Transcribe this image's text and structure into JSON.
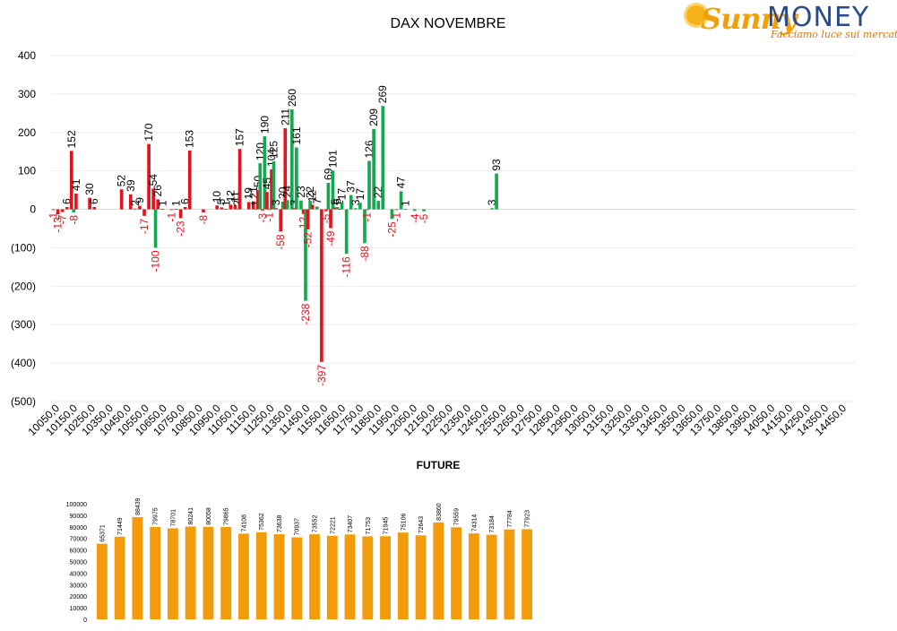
{
  "logo": {
    "sunny": "Sunny",
    "money": "MONEY",
    "tagline": "Facciamo luce sui mercati"
  },
  "colors": {
    "negative": "#e3121d",
    "positive": "#16a84f",
    "future": "#f39c0b",
    "neg_label": "#e3121d",
    "text": "#000000"
  },
  "chart_data": [
    {
      "type": "bar",
      "title": "DAX NOVEMBRE",
      "xlabel": "",
      "ylabel": "",
      "ylim": [
        -500,
        400
      ],
      "yticks": [
        "400",
        "300",
        "200",
        "100",
        "0",
        "(100)",
        "(200)",
        "(300)",
        "(400)",
        "(500)"
      ],
      "categories": [
        "10050,0",
        "10150,0",
        "10250,0",
        "10350,0",
        "10450,0",
        "10550,0",
        "10650,0",
        "10750,0",
        "10850,0",
        "10950,0",
        "11050,0",
        "11150,0",
        "11250,0",
        "11350,0",
        "11450,0",
        "11550,0",
        "11650,0",
        "11750,0",
        "11850,0",
        "11950,0",
        "12050,0",
        "12150,0",
        "12250,0",
        "12350,0",
        "12450,0",
        "12550,0",
        "12650,0",
        "12750,0",
        "12850,0",
        "12950,0",
        "13050,0",
        "13150,0",
        "13250,0",
        "13350,0",
        "13450,0",
        "13550,0",
        "13650,0",
        "13750,0",
        "13850,0",
        "13950,0",
        "14050,0",
        "14150,0",
        "14250,0",
        "14350,0",
        "14450,0"
      ],
      "bar_start": 10050,
      "bar_step": 25,
      "bar_count": 177,
      "bars": [
        {
          "x": 10050,
          "v": -1,
          "s": "r"
        },
        {
          "x": 10075,
          "v": -13,
          "s": "r"
        },
        {
          "x": 10100,
          "v": -7,
          "s": "r"
        },
        {
          "x": 10125,
          "v": 6,
          "s": "r"
        },
        {
          "x": 10150,
          "v": 152,
          "s": "r"
        },
        {
          "x": 10162,
          "v": -8,
          "s": "g"
        },
        {
          "x": 10175,
          "v": 41,
          "s": "r"
        },
        {
          "x": 10250,
          "v": 30,
          "s": "r"
        },
        {
          "x": 10275,
          "v": 6,
          "s": "r"
        },
        {
          "x": 10425,
          "v": 52,
          "s": "r"
        },
        {
          "x": 10475,
          "v": 39,
          "s": "r"
        },
        {
          "x": 10500,
          "v": 2,
          "s": "r"
        },
        {
          "x": 10525,
          "v": 9,
          "s": "r"
        },
        {
          "x": 10550,
          "v": -17,
          "s": "r"
        },
        {
          "x": 10575,
          "v": 170,
          "s": "r"
        },
        {
          "x": 10600,
          "v": 54,
          "s": "r"
        },
        {
          "x": 10612,
          "v": -100,
          "s": "g"
        },
        {
          "x": 10625,
          "v": 26,
          "s": "r"
        },
        {
          "x": 10650,
          "v": 1,
          "s": "r"
        },
        {
          "x": 10700,
          "v": -1,
          "s": "r"
        },
        {
          "x": 10725,
          "v": 1,
          "s": "r"
        },
        {
          "x": 10750,
          "v": -23,
          "s": "r"
        },
        {
          "x": 10775,
          "v": 6,
          "s": "r"
        },
        {
          "x": 10800,
          "v": 153,
          "s": "r"
        },
        {
          "x": 10875,
          "v": -8,
          "s": "r"
        },
        {
          "x": 10950,
          "v": 10,
          "s": "r"
        },
        {
          "x": 10975,
          "v": 5,
          "s": "r"
        },
        {
          "x": 11000,
          "v": 1,
          "s": "r"
        },
        {
          "x": 11025,
          "v": 12,
          "s": "r"
        },
        {
          "x": 11050,
          "v": 11,
          "s": "r"
        },
        {
          "x": 11062,
          "v": 2,
          "s": "g"
        },
        {
          "x": 11075,
          "v": 157,
          "s": "r"
        },
        {
          "x": 11125,
          "v": 19,
          "s": "r"
        },
        {
          "x": 11150,
          "v": 21,
          "s": "r"
        },
        {
          "x": 11162,
          "v": 1,
          "s": "g"
        },
        {
          "x": 11175,
          "v": 50,
          "s": "r"
        },
        {
          "x": 11187,
          "v": 120,
          "s": "g"
        },
        {
          "x": 11200,
          "v": -3,
          "s": "r"
        },
        {
          "x": 11212,
          "v": 190,
          "s": "g"
        },
        {
          "x": 11225,
          "v": 45,
          "s": "r"
        },
        {
          "x": 11237,
          "v": -1,
          "s": "g"
        },
        {
          "x": 11250,
          "v": 104,
          "s": "r"
        },
        {
          "x": 11262,
          "v": 125,
          "s": "g"
        },
        {
          "x": 11275,
          "v": 3,
          "s": "r"
        },
        {
          "x": 11300,
          "v": -58,
          "s": "r"
        },
        {
          "x": 11312,
          "v": 20,
          "s": "g"
        },
        {
          "x": 11325,
          "v": 211,
          "s": "r"
        },
        {
          "x": 11337,
          "v": 24,
          "s": "g"
        },
        {
          "x": 11362,
          "v": 260,
          "s": "g"
        },
        {
          "x": 11375,
          "v": 3,
          "s": "r"
        },
        {
          "x": 11387,
          "v": 161,
          "s": "g"
        },
        {
          "x": 11412,
          "v": 23,
          "s": "g"
        },
        {
          "x": 11425,
          "v": -12,
          "s": "r"
        },
        {
          "x": 11437,
          "v": -238,
          "s": "g"
        },
        {
          "x": 11450,
          "v": -52,
          "s": "r"
        },
        {
          "x": 11462,
          "v": 22,
          "s": "g"
        },
        {
          "x": 11475,
          "v": 12,
          "s": "r"
        },
        {
          "x": 11500,
          "v": 7,
          "s": "g"
        },
        {
          "x": 11525,
          "v": -397,
          "s": "r"
        },
        {
          "x": 11550,
          "v": -5,
          "s": "r"
        },
        {
          "x": 11562,
          "v": 69,
          "s": "g"
        },
        {
          "x": 11575,
          "v": -49,
          "s": "r"
        },
        {
          "x": 11587,
          "v": 101,
          "s": "g"
        },
        {
          "x": 11600,
          "v": 5,
          "s": "r"
        },
        {
          "x": 11612,
          "v": 6,
          "s": "g"
        },
        {
          "x": 11625,
          "v": 1,
          "s": "r"
        },
        {
          "x": 11637,
          "v": 17,
          "s": "g"
        },
        {
          "x": 11662,
          "v": -116,
          "s": "g"
        },
        {
          "x": 11687,
          "v": 37,
          "s": "g"
        },
        {
          "x": 11712,
          "v": 3,
          "s": "g"
        },
        {
          "x": 11737,
          "v": 17,
          "s": "g"
        },
        {
          "x": 11762,
          "v": -88,
          "s": "g"
        },
        {
          "x": 11775,
          "v": -1,
          "s": "r"
        },
        {
          "x": 11787,
          "v": 126,
          "s": "g"
        },
        {
          "x": 11812,
          "v": 209,
          "s": "g"
        },
        {
          "x": 11837,
          "v": 22,
          "s": "g"
        },
        {
          "x": 11862,
          "v": 269,
          "s": "g"
        },
        {
          "x": 11912,
          "v": -25,
          "s": "g"
        },
        {
          "x": 11937,
          "v": -1,
          "s": "r"
        },
        {
          "x": 11962,
          "v": 47,
          "s": "g"
        },
        {
          "x": 11987,
          "v": 1,
          "s": "g"
        },
        {
          "x": 12037,
          "v": -4,
          "s": "g"
        },
        {
          "x": 12087,
          "v": -5,
          "s": "g"
        },
        {
          "x": 12462,
          "v": 3,
          "s": "g"
        },
        {
          "x": 12487,
          "v": 93,
          "s": "g"
        }
      ]
    },
    {
      "type": "bar",
      "title": "FUTURE",
      "xlabel": "",
      "ylabel": "",
      "ylim": [
        0,
        100000
      ],
      "yticks": [
        "100000",
        "90000",
        "80000",
        "70000",
        "60000",
        "50000",
        "40000",
        "30000",
        "20000",
        "10000",
        "0"
      ],
      "values": [
        65371,
        71449,
        88439,
        79975,
        78701,
        80241,
        80058,
        79865,
        74108,
        75362,
        73638,
        70937,
        73552,
        72221,
        73407,
        71753,
        71945,
        75106,
        72643,
        83860,
        79559,
        74314,
        73184,
        77784,
        77923
      ]
    }
  ]
}
